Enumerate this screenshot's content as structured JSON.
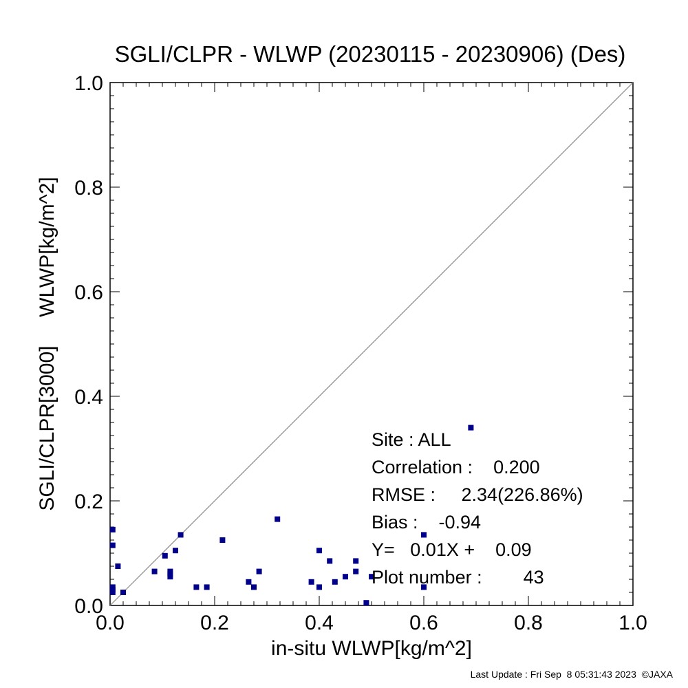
{
  "chart_data": {
    "type": "scatter",
    "title": "SGLI/CLPR - WLWP (20230115 - 20230906) (Des)",
    "xlabel": "in-situ WLWP[kg/m^2]",
    "ylabel": "SGLI/CLPR[3000]     WLWP[kg/m^2]",
    "xlim": [
      0.0,
      1.0
    ],
    "ylim": [
      0.0,
      1.0
    ],
    "x_ticks": [
      "0.0",
      "0.2",
      "0.4",
      "0.6",
      "0.8",
      "1.0"
    ],
    "y_ticks": [
      "0.0",
      "0.2",
      "0.4",
      "0.6",
      "0.8",
      "1.0"
    ],
    "grid": false,
    "reference_line": "1:1",
    "marker_color": "#00008b",
    "points": [
      {
        "x": 0.69,
        "y": 0.34
      },
      {
        "x": 0.005,
        "y": 0.145
      },
      {
        "x": 0.005,
        "y": 0.115
      },
      {
        "x": 0.015,
        "y": 0.075
      },
      {
        "x": 0.005,
        "y": 0.035
      },
      {
        "x": 0.005,
        "y": 0.03
      },
      {
        "x": 0.005,
        "y": 0.025
      },
      {
        "x": 0.025,
        "y": 0.025
      },
      {
        "x": 0.085,
        "y": 0.065
      },
      {
        "x": 0.105,
        "y": 0.095
      },
      {
        "x": 0.115,
        "y": 0.065
      },
      {
        "x": 0.115,
        "y": 0.06
      },
      {
        "x": 0.115,
        "y": 0.055
      },
      {
        "x": 0.125,
        "y": 0.105
      },
      {
        "x": 0.135,
        "y": 0.135
      },
      {
        "x": 0.165,
        "y": 0.035
      },
      {
        "x": 0.185,
        "y": 0.035
      },
      {
        "x": 0.215,
        "y": 0.125
      },
      {
        "x": 0.265,
        "y": 0.045
      },
      {
        "x": 0.275,
        "y": 0.035
      },
      {
        "x": 0.285,
        "y": 0.065
      },
      {
        "x": 0.32,
        "y": 0.165
      },
      {
        "x": 0.385,
        "y": 0.045
      },
      {
        "x": 0.4,
        "y": 0.105
      },
      {
        "x": 0.4,
        "y": 0.035
      },
      {
        "x": 0.42,
        "y": 0.085
      },
      {
        "x": 0.43,
        "y": 0.045
      },
      {
        "x": 0.45,
        "y": 0.055
      },
      {
        "x": 0.47,
        "y": 0.085
      },
      {
        "x": 0.47,
        "y": 0.065
      },
      {
        "x": 0.49,
        "y": 0.005
      },
      {
        "x": 0.5,
        "y": 0.055
      },
      {
        "x": 0.6,
        "y": 0.135
      },
      {
        "x": 0.6,
        "y": 0.035
      }
    ],
    "stats": {
      "site": "Site : ALL",
      "correlation": "Correlation :    0.200",
      "rmse": "RMSE :     2.34(226.86%)",
      "bias": "Bias :    -0.94",
      "regression": "Y=   0.01X +    0.09",
      "plot_number": "Plot number :        43"
    },
    "footer": "Last Update : Fri Sep  8 05:31:43 2023  ©JAXA"
  }
}
